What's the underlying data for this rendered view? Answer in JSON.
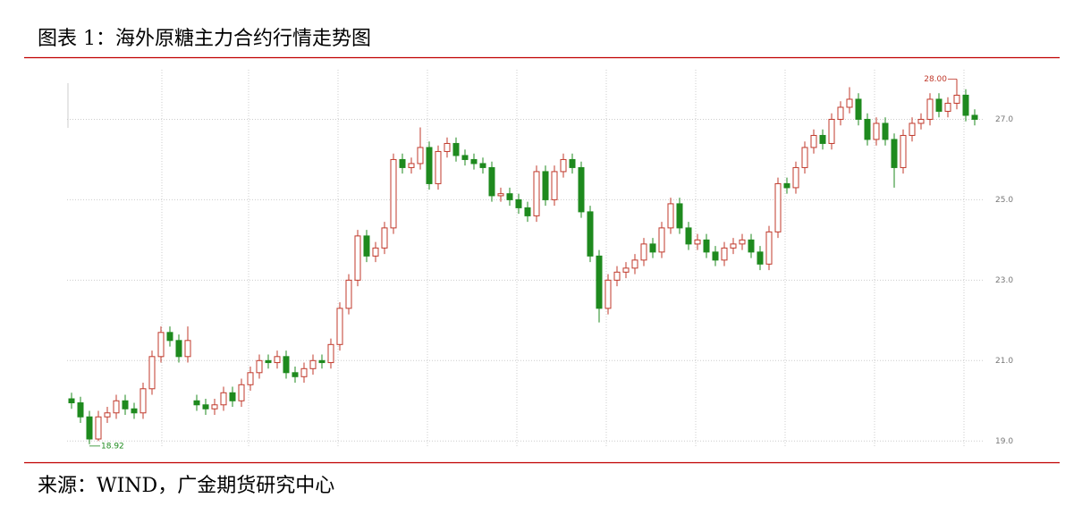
{
  "chart_data": {
    "type": "candlestick",
    "title": "图表 1：海外原糖主力合约行情走势图",
    "source": "来源：WIND，广金期货研究中心",
    "max_label": "28.00",
    "min_label": "18.92",
    "up_color": "#c0392b",
    "down_color": "#1e8a1e",
    "ylim": [
      18.85,
      28.3
    ],
    "yticks": [
      {
        "value": 19,
        "label": "19.0"
      },
      {
        "value": 21,
        "label": "21.0"
      },
      {
        "value": 23,
        "label": "23.0"
      },
      {
        "value": 25,
        "label": "25.0"
      },
      {
        "value": 27,
        "label": "27.0"
      }
    ],
    "grid": true,
    "open": [
      20.05,
      19.95,
      19.6,
      19.05,
      19.6,
      19.7,
      20.0,
      19.8,
      19.7,
      20.3,
      21.1,
      21.7,
      21.5,
      21.1,
      20.0,
      19.9,
      19.8,
      19.9,
      20.2,
      20.0,
      20.4,
      20.7,
      21.0,
      20.95,
      21.1,
      20.7,
      20.6,
      20.8,
      21.0,
      20.95,
      21.4,
      22.3,
      23.0,
      24.1,
      23.6,
      23.8,
      24.3,
      26.0,
      25.8,
      25.9,
      26.3,
      25.4,
      26.2,
      26.4,
      26.1,
      26.0,
      25.9,
      25.8,
      25.1,
      25.15,
      25.0,
      24.8,
      24.6,
      25.7,
      25.0,
      25.7,
      26.0,
      25.8,
      24.7,
      23.6,
      22.3,
      23.0,
      23.2,
      23.3,
      23.5,
      23.9,
      23.7,
      24.3,
      24.9,
      24.3,
      23.9,
      24.0,
      23.7,
      23.5,
      23.8,
      23.9,
      24.0,
      23.7,
      23.4,
      24.2,
      25.4,
      25.3,
      25.8,
      26.3,
      26.6,
      26.4,
      27.0,
      27.3,
      27.5,
      27.0,
      26.5,
      26.9,
      26.5,
      25.8,
      26.6,
      26.9,
      27.0,
      27.5,
      27.2,
      27.4,
      27.6,
      27.1
    ],
    "high": [
      20.2,
      20.1,
      19.75,
      19.75,
      19.85,
      20.15,
      20.15,
      19.95,
      20.45,
      21.25,
      21.85,
      21.85,
      21.65,
      21.85,
      20.15,
      20.05,
      20.05,
      20.35,
      20.35,
      20.55,
      20.85,
      21.15,
      21.15,
      21.25,
      21.25,
      20.85,
      20.95,
      21.15,
      21.15,
      21.55,
      22.45,
      23.15,
      24.25,
      24.25,
      23.95,
      24.45,
      26.15,
      26.15,
      26.05,
      26.8,
      26.45,
      26.35,
      26.55,
      26.55,
      26.25,
      26.15,
      26.05,
      25.95,
      25.3,
      25.3,
      25.15,
      24.95,
      25.85,
      25.85,
      25.85,
      26.15,
      26.15,
      25.95,
      24.85,
      23.75,
      23.15,
      23.35,
      23.45,
      23.65,
      24.05,
      24.05,
      24.45,
      25.05,
      25.05,
      24.45,
      24.15,
      24.15,
      23.85,
      23.95,
      24.05,
      24.15,
      24.15,
      23.85,
      24.35,
      25.55,
      25.55,
      25.95,
      26.45,
      26.75,
      26.75,
      27.15,
      27.45,
      27.8,
      27.65,
      27.15,
      27.05,
      27.05,
      26.65,
      26.75,
      27.05,
      27.15,
      27.65,
      27.65,
      27.55,
      28.0,
      27.75,
      27.25
    ],
    "low": [
      19.8,
      19.45,
      18.92,
      19.0,
      19.45,
      19.55,
      19.65,
      19.55,
      19.55,
      20.15,
      20.95,
      21.35,
      20.95,
      20.95,
      19.75,
      19.65,
      19.65,
      19.75,
      19.85,
      19.85,
      20.25,
      20.55,
      20.8,
      20.8,
      20.55,
      20.45,
      20.45,
      20.65,
      20.8,
      20.8,
      21.25,
      22.15,
      22.85,
      23.45,
      23.45,
      23.65,
      24.15,
      25.65,
      25.65,
      25.75,
      25.25,
      25.25,
      26.05,
      25.95,
      25.85,
      25.75,
      25.65,
      24.95,
      24.95,
      24.85,
      24.65,
      24.45,
      24.45,
      24.85,
      24.85,
      25.55,
      25.65,
      24.55,
      23.45,
      21.95,
      22.15,
      22.85,
      23.05,
      23.15,
      23.35,
      23.55,
      23.55,
      24.15,
      24.15,
      23.75,
      23.75,
      23.55,
      23.35,
      23.35,
      23.65,
      23.75,
      23.55,
      23.25,
      23.25,
      24.05,
      25.15,
      25.15,
      25.65,
      26.15,
      26.25,
      26.25,
      26.85,
      27.15,
      26.85,
      26.35,
      26.35,
      26.35,
      25.3,
      25.65,
      26.45,
      26.75,
      26.85,
      27.05,
      27.05,
      27.25,
      26.95,
      26.85
    ],
    "close": [
      19.95,
      19.6,
      19.05,
      19.6,
      19.7,
      20.0,
      19.8,
      19.7,
      20.3,
      21.1,
      21.7,
      21.5,
      21.1,
      21.5,
      19.9,
      19.8,
      19.9,
      20.2,
      20.0,
      20.4,
      20.7,
      21.0,
      20.95,
      21.1,
      20.7,
      20.6,
      20.8,
      21.0,
      20.95,
      21.4,
      22.3,
      23.0,
      24.1,
      23.6,
      23.8,
      24.3,
      26.0,
      25.8,
      25.9,
      26.3,
      25.4,
      26.2,
      26.4,
      26.1,
      26.0,
      25.9,
      25.8,
      25.1,
      25.15,
      25.0,
      24.8,
      24.6,
      25.7,
      25.0,
      25.7,
      26.0,
      25.8,
      24.7,
      23.6,
      22.3,
      23.0,
      23.2,
      23.3,
      23.5,
      23.9,
      23.7,
      24.3,
      24.9,
      24.3,
      23.9,
      24.0,
      23.7,
      23.5,
      23.8,
      23.9,
      24.0,
      23.7,
      23.4,
      24.2,
      25.4,
      25.3,
      25.8,
      26.3,
      26.6,
      26.4,
      27.0,
      27.3,
      27.5,
      27.0,
      26.5,
      26.9,
      26.5,
      25.8,
      26.6,
      26.9,
      27.0,
      27.5,
      27.2,
      27.4,
      27.6,
      27.1,
      27.0
    ]
  }
}
